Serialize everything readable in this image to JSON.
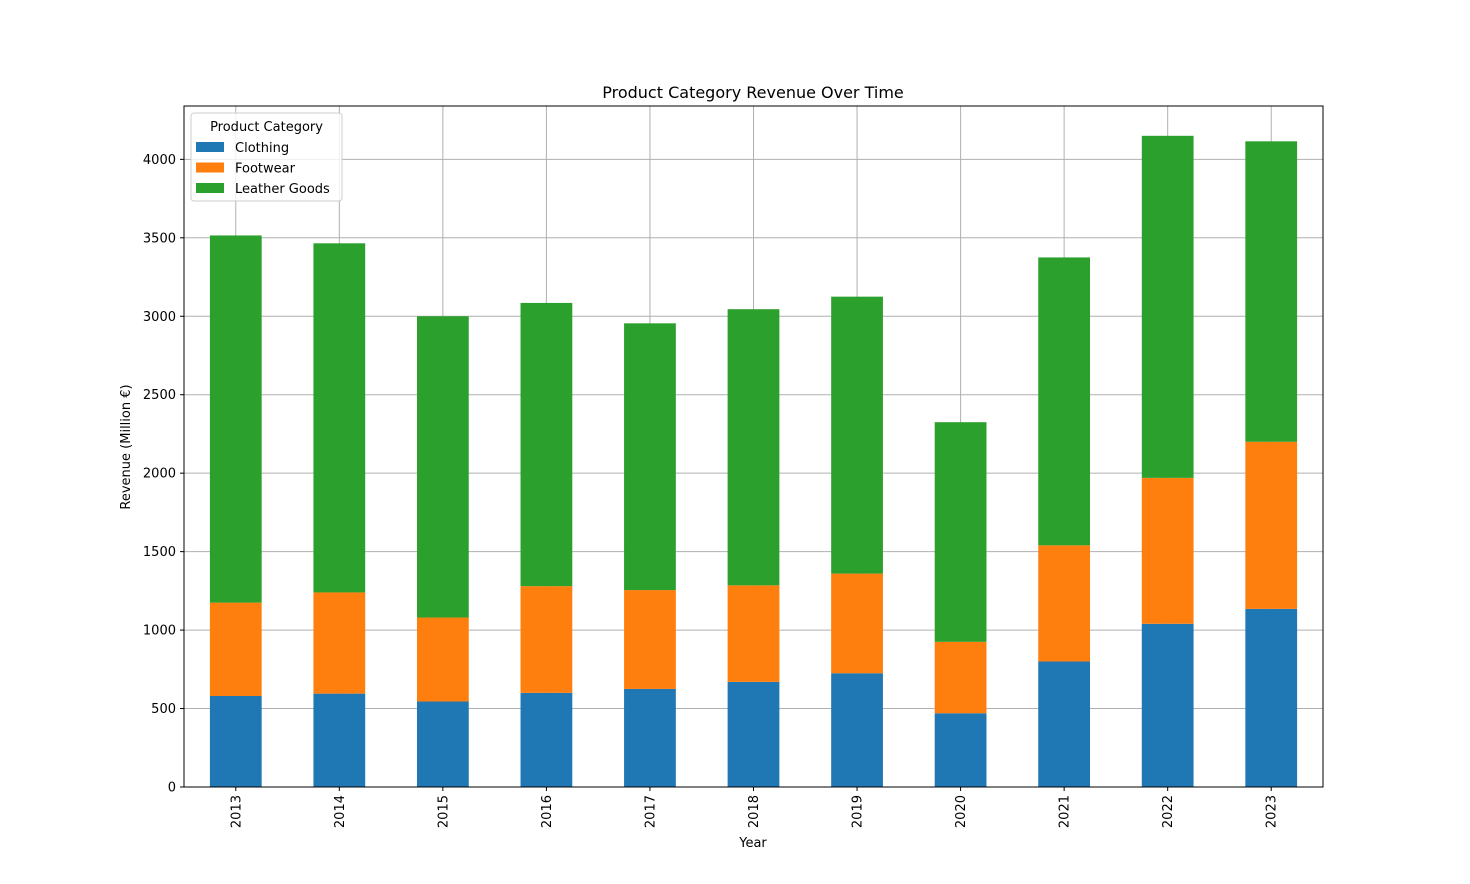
{
  "chart_data": {
    "type": "bar",
    "stacked": true,
    "title": "Product Category Revenue Over Time",
    "xlabel": "Year",
    "ylabel": "Revenue (Million €)",
    "categories": [
      "2013",
      "2014",
      "2015",
      "2016",
      "2017",
      "2018",
      "2019",
      "2020",
      "2021",
      "2022",
      "2023"
    ],
    "series": [
      {
        "name": "Clothing",
        "color": "#1f77b4",
        "values": [
          580,
          595,
          545,
          600,
          625,
          670,
          725,
          470,
          800,
          1040,
          1135
        ]
      },
      {
        "name": "Footwear",
        "color": "#ff7f0e",
        "values": [
          595,
          645,
          535,
          680,
          630,
          615,
          635,
          455,
          740,
          930,
          1065
        ]
      },
      {
        "name": "Leather Goods",
        "color": "#2ca02c",
        "values": [
          2340,
          2225,
          1920,
          1805,
          1700,
          1760,
          1765,
          1400,
          1835,
          2180,
          1915
        ]
      }
    ],
    "ylim": [
      0,
      4340
    ],
    "yticks": [
      0,
      500,
      1000,
      1500,
      2000,
      2500,
      3000,
      3500,
      4000
    ],
    "grid": true,
    "legend": {
      "title": "Product Category",
      "placement": "top-left"
    }
  }
}
